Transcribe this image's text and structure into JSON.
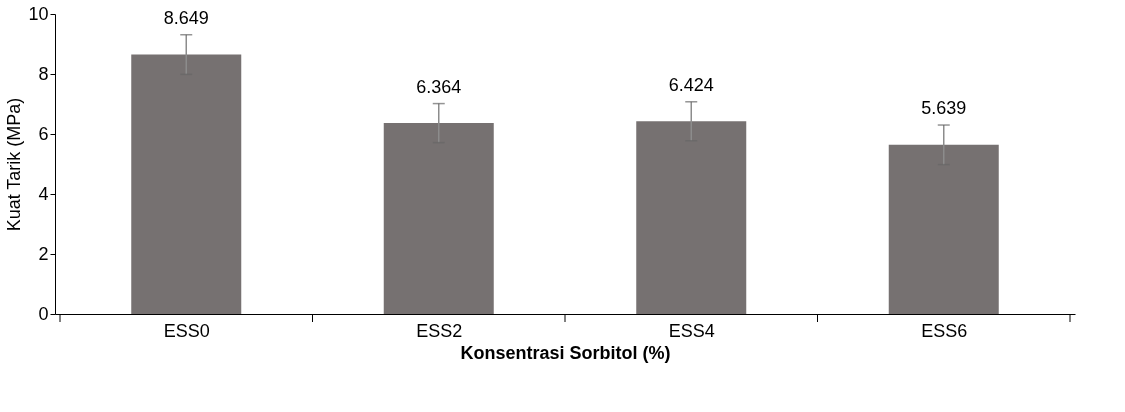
{
  "chart_data": {
    "type": "bar",
    "xlabel": "Konsentrasi Sorbitol (%)",
    "ylabel": "Kuat Tarik (MPa)",
    "categories": [
      "ESS0",
      "ESS2",
      "ESS4",
      "ESS6"
    ],
    "values": [
      8.649,
      6.364,
      6.424,
      5.639
    ],
    "errors": [
      0.66,
      0.65,
      0.65,
      0.66
    ],
    "color": "#767171",
    "ylim": [
      0,
      10
    ],
    "yticks": [
      0,
      2,
      4,
      6,
      8,
      10
    ],
    "grid": false,
    "data_labels": true
  }
}
